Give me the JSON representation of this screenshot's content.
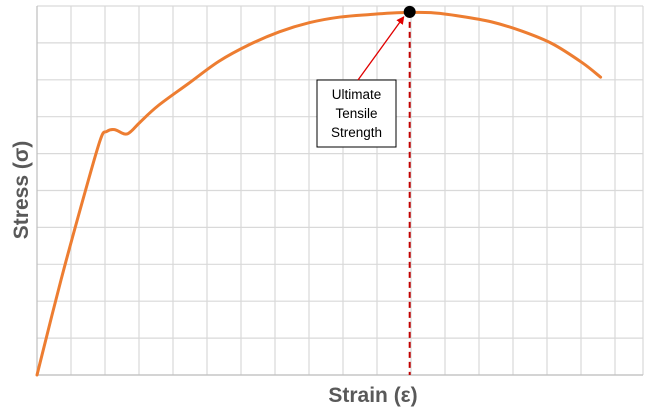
{
  "chart_data": {
    "type": "line",
    "xlabel": "Strain (ε)",
    "ylabel": "Stress (σ)",
    "grid": true,
    "legend": "none",
    "xlim": [
      0,
      100
    ],
    "ylim": [
      0,
      100
    ],
    "colors": {
      "curve": "#ed7d31",
      "marker": "#000000",
      "guide": "#c00000",
      "arrow": "#e00000",
      "grid": "#d9d9d9"
    },
    "series": [
      {
        "x": [
          0,
          4,
          8,
          10.5,
          11.5,
          12.8,
          14.5,
          15.5,
          17,
          20,
          25,
          30,
          35,
          40,
          45,
          50,
          55,
          60,
          65,
          70,
          75,
          80,
          85,
          90,
          93
        ],
        "y": [
          0,
          26,
          50,
          64,
          66,
          66.5,
          65.3,
          66,
          68.5,
          73,
          79,
          85,
          89.5,
          93,
          95.5,
          97,
          97.7,
          98.2,
          98.2,
          97.2,
          95.7,
          93.2,
          89.8,
          84.6,
          80.7
        ]
      }
    ],
    "annotations": [
      {
        "text": [
          "Ultimate",
          "Tensile",
          "Strength"
        ],
        "point": {
          "x": 61.5,
          "y": 98.4
        }
      }
    ]
  }
}
